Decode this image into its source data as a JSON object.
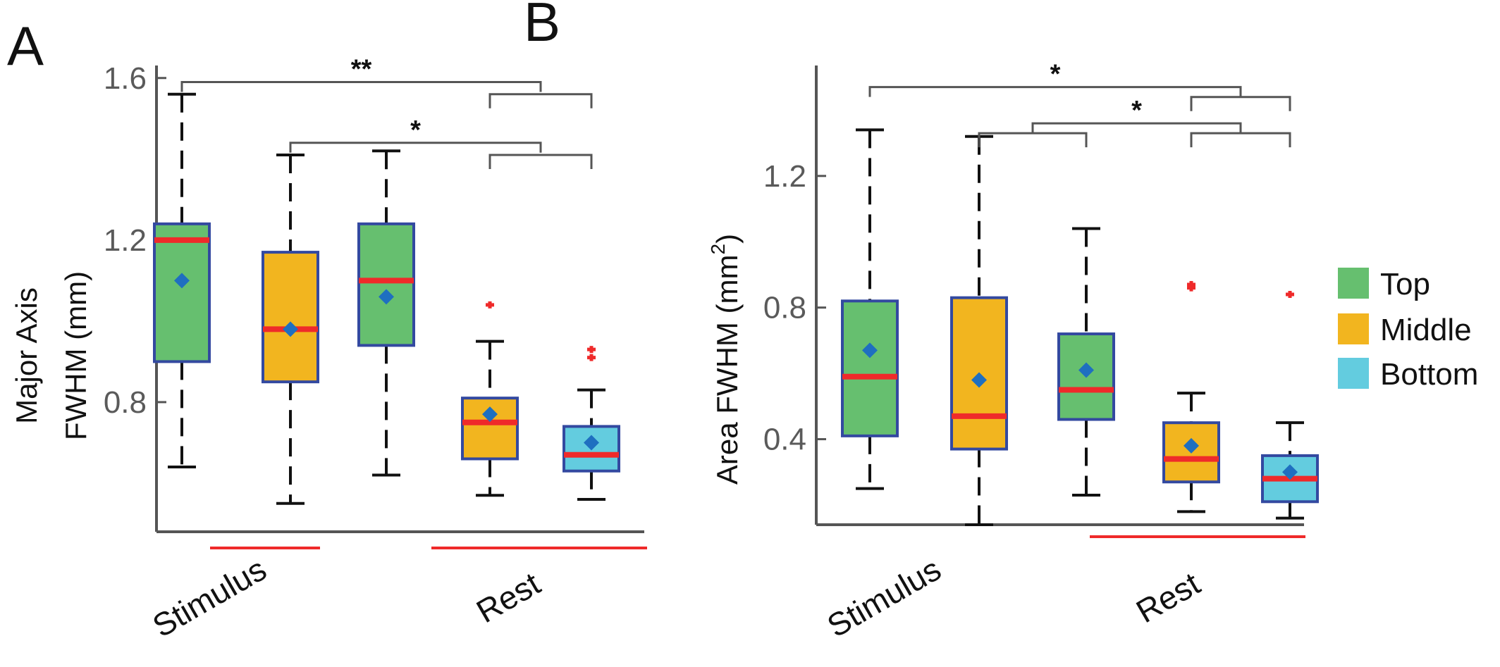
{
  "colors": {
    "top": "#66bf6f",
    "middle": "#f2b51f",
    "bottom": "#63ccdf",
    "box_edge": "#3349a0",
    "median": "#ef2a2a",
    "mean": "#1f6fc0",
    "outlier": "#ef2a2a",
    "axis": "#555555",
    "tick_text": "#5a5a5a",
    "bracket": "#555555",
    "group_underline": "#ef2a2a"
  },
  "legend": {
    "items": [
      {
        "label": "Top",
        "color": "#66bf6f"
      },
      {
        "label": "Middle",
        "color": "#f2b51f"
      },
      {
        "label": "Bottom",
        "color": "#63ccdf"
      }
    ]
  },
  "chart_data": [
    {
      "type": "box",
      "panel": "A",
      "ylabel_line1": "Major Axis",
      "ylabel_line2": "FWHM (mm)",
      "ylim": [
        0.48,
        1.61
      ],
      "yticks": [
        0.8,
        1.2,
        1.6
      ],
      "ytick_labels": [
        "0.8",
        "1.2",
        "1.6"
      ],
      "groups": [
        {
          "label": "Stimulus",
          "boxes": [
            0,
            1
          ]
        },
        {
          "label": "Rest",
          "boxes": [
            3,
            4
          ]
        }
      ],
      "boxes": [
        {
          "cat": "Top",
          "whisker_low": 0.64,
          "q1": 0.9,
          "median": 1.2,
          "q3": 1.24,
          "whisker_high": 1.56,
          "mean": 1.1,
          "outliers": []
        },
        {
          "cat": "Middle",
          "whisker_low": 0.55,
          "q1": 0.85,
          "median": 0.98,
          "q3": 1.17,
          "whisker_high": 1.41,
          "mean": 0.98,
          "outliers": []
        },
        {
          "cat": "Top",
          "whisker_low": 0.62,
          "q1": 0.94,
          "median": 1.1,
          "q3": 1.24,
          "whisker_high": 1.42,
          "mean": 1.06,
          "outliers": []
        },
        {
          "cat": "Middle",
          "whisker_low": 0.57,
          "q1": 0.66,
          "median": 0.75,
          "q3": 0.81,
          "whisker_high": 0.95,
          "mean": 0.77,
          "outliers": [
            1.04
          ]
        },
        {
          "cat": "Bottom",
          "whisker_low": 0.56,
          "q1": 0.63,
          "median": 0.67,
          "q3": 0.74,
          "whisker_high": 0.83,
          "mean": 0.7,
          "outliers": [
            0.91,
            0.93
          ]
        }
      ],
      "brackets": [
        {
          "label": "**",
          "left": [
            0,
            0
          ],
          "right": [
            3,
            4
          ],
          "level": 1.59,
          "sub_level": 1.56
        },
        {
          "label": "*",
          "left": [
            1,
            1
          ],
          "right": [
            3,
            4
          ],
          "level": 1.44,
          "sub_level": 1.41
        }
      ]
    },
    {
      "type": "box",
      "panel": "B",
      "ylabel": "Area  FWHM (mm",
      "ylabel_sup": "2",
      "ylabel_close": ")",
      "ylim": [
        0.14,
        1.51
      ],
      "yticks": [
        0.4,
        0.8,
        1.2
      ],
      "ytick_labels": [
        "0.4",
        "0.8",
        "1.2"
      ],
      "groups": [
        {
          "label": "Stimulus",
          "boxes": [
            0,
            1
          ]
        },
        {
          "label": "Rest",
          "boxes": [
            3,
            4
          ]
        }
      ],
      "boxes": [
        {
          "cat": "Top",
          "whisker_low": 0.25,
          "q1": 0.41,
          "median": 0.59,
          "q3": 0.82,
          "whisker_high": 1.34,
          "mean": 0.67,
          "outliers": []
        },
        {
          "cat": "Middle",
          "whisker_low": 0.14,
          "q1": 0.37,
          "median": 0.47,
          "q3": 0.83,
          "whisker_high": 1.32,
          "mean": 0.58,
          "outliers": []
        },
        {
          "cat": "Top",
          "whisker_low": 0.23,
          "q1": 0.46,
          "median": 0.55,
          "q3": 0.72,
          "whisker_high": 1.04,
          "mean": 0.61,
          "outliers": []
        },
        {
          "cat": "Middle",
          "whisker_low": 0.18,
          "q1": 0.27,
          "median": 0.34,
          "q3": 0.45,
          "whisker_high": 0.54,
          "mean": 0.38,
          "outliers": [
            0.86,
            0.87
          ]
        },
        {
          "cat": "Bottom",
          "whisker_low": 0.16,
          "q1": 0.21,
          "median": 0.28,
          "q3": 0.35,
          "whisker_high": 0.45,
          "mean": 0.3,
          "outliers": [
            0.84
          ]
        }
      ],
      "brackets": [
        {
          "label": "*",
          "left": [
            0,
            0
          ],
          "right": [
            3,
            4
          ],
          "level": 1.47,
          "sub_level": 1.44
        },
        {
          "label": "*",
          "left": [
            1,
            2
          ],
          "right": [
            3,
            4
          ],
          "level": 1.36,
          "sub_level": 1.33
        }
      ]
    }
  ]
}
